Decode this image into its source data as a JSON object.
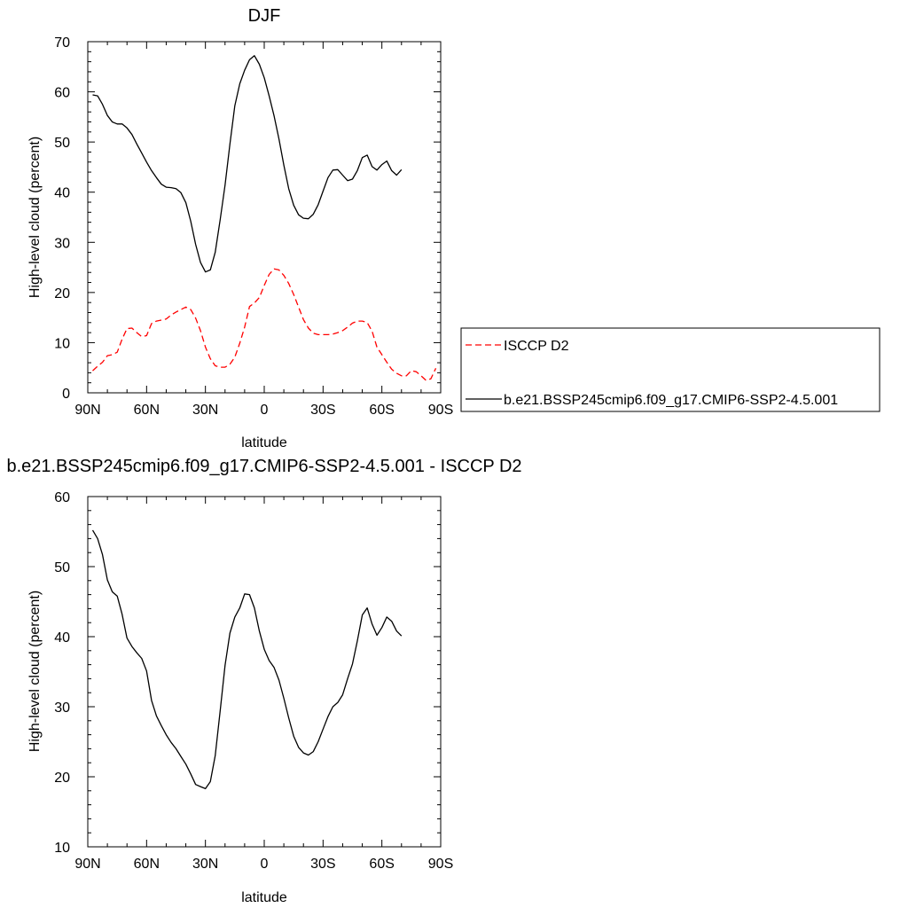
{
  "chart_data": [
    {
      "type": "line",
      "title": "DJF",
      "xlabel": "latitude",
      "ylabel": "High-level cloud (percent)",
      "xlim": [
        90,
        -90
      ],
      "ylim": [
        0,
        70
      ],
      "xticks": [
        90,
        60,
        30,
        0,
        -30,
        -60,
        -90
      ],
      "xtick_labels": [
        "90N",
        "60N",
        "30N",
        "0",
        "30S",
        "60S",
        "90S"
      ],
      "yticks": [
        0,
        10,
        20,
        30,
        40,
        50,
        60,
        70
      ],
      "ytick_labels": [
        "0",
        "10",
        "20",
        "30",
        "40",
        "50",
        "60",
        "70"
      ],
      "legend": "outside-right",
      "series": [
        {
          "name": "ISCCP D2",
          "color": "#ff0000",
          "dash": "dashed",
          "points": [
            [
              87.5,
              4.4
            ],
            [
              85,
              5.3
            ],
            [
              82.5,
              6.1
            ],
            [
              80,
              7.4
            ],
            [
              77.5,
              7.6
            ],
            [
              75,
              8.1
            ],
            [
              72.5,
              10.7
            ],
            [
              70,
              12.8
            ],
            [
              67.5,
              12.9
            ],
            [
              65,
              12.0
            ],
            [
              62.5,
              11.2
            ],
            [
              60,
              11.4
            ],
            [
              57.5,
              13.8
            ],
            [
              55,
              14.3
            ],
            [
              52.5,
              14.5
            ],
            [
              50,
              14.7
            ],
            [
              47.5,
              15.5
            ],
            [
              45,
              16.1
            ],
            [
              42.5,
              16.6
            ],
            [
              40,
              17.1
            ],
            [
              37.5,
              16.6
            ],
            [
              35,
              14.9
            ],
            [
              32.5,
              12.4
            ],
            [
              30,
              9.1
            ],
            [
              27.5,
              6.8
            ],
            [
              25,
              5.4
            ],
            [
              22.5,
              5.1
            ],
            [
              20,
              5.1
            ],
            [
              17.5,
              5.7
            ],
            [
              15,
              7.1
            ],
            [
              12.5,
              9.9
            ],
            [
              10,
              13.1
            ],
            [
              7.5,
              17.2
            ],
            [
              5,
              17.9
            ],
            [
              2.5,
              19.0
            ],
            [
              0,
              21.4
            ],
            [
              -2.5,
              23.6
            ],
            [
              -5,
              24.7
            ],
            [
              -7.5,
              24.5
            ],
            [
              -10,
              23.4
            ],
            [
              -12.5,
              21.8
            ],
            [
              -15,
              19.6
            ],
            [
              -17.5,
              17.1
            ],
            [
              -20,
              14.6
            ],
            [
              -22.5,
              12.9
            ],
            [
              -25,
              11.9
            ],
            [
              -27.5,
              11.6
            ],
            [
              -30,
              11.6
            ],
            [
              -32.5,
              11.6
            ],
            [
              -35,
              11.7
            ],
            [
              -37.5,
              12.0
            ],
            [
              -40,
              12.4
            ],
            [
              -42.5,
              13.1
            ],
            [
              -45,
              13.9
            ],
            [
              -47.5,
              14.3
            ],
            [
              -50,
              14.3
            ],
            [
              -52.5,
              14.0
            ],
            [
              -55,
              12.3
            ],
            [
              -57.5,
              9.1
            ],
            [
              -60,
              7.6
            ],
            [
              -62.5,
              6.1
            ],
            [
              -65,
              4.7
            ],
            [
              -67.5,
              3.9
            ],
            [
              -70,
              3.4
            ],
            [
              -72.5,
              3.4
            ],
            [
              -75,
              4.4
            ],
            [
              -77.5,
              4.2
            ],
            [
              -80,
              3.4
            ],
            [
              -82.5,
              2.5
            ],
            [
              -85,
              2.8
            ],
            [
              -87.5,
              4.9
            ]
          ]
        },
        {
          "name": "b.e21.BSSP245cmip6.f09_g17.CMIP6-SSP2-4.5.001",
          "color": "#000000",
          "dash": "solid",
          "points": [
            [
              87.5,
              59.4
            ],
            [
              85,
              59.2
            ],
            [
              82.5,
              57.5
            ],
            [
              80,
              55.3
            ],
            [
              77.5,
              54.0
            ],
            [
              75,
              53.6
            ],
            [
              72.5,
              53.6
            ],
            [
              70,
              52.8
            ],
            [
              67.5,
              51.5
            ],
            [
              65,
              49.6
            ],
            [
              62.5,
              47.8
            ],
            [
              60,
              46.0
            ],
            [
              57.5,
              44.3
            ],
            [
              55,
              42.9
            ],
            [
              52.5,
              41.6
            ],
            [
              50,
              41.0
            ],
            [
              47.5,
              40.9
            ],
            [
              45,
              40.7
            ],
            [
              42.5,
              39.9
            ],
            [
              40,
              37.9
            ],
            [
              37.5,
              34.2
            ],
            [
              35,
              29.6
            ],
            [
              32.5,
              26.0
            ],
            [
              30,
              24.1
            ],
            [
              27.5,
              24.5
            ],
            [
              25,
              28.0
            ],
            [
              22.5,
              34.5
            ],
            [
              20,
              41.4
            ],
            [
              17.5,
              49.6
            ],
            [
              15,
              57.2
            ],
            [
              12.5,
              61.6
            ],
            [
              10,
              64.3
            ],
            [
              7.5,
              66.4
            ],
            [
              5,
              67.2
            ],
            [
              2.5,
              65.5
            ],
            [
              0,
              62.8
            ],
            [
              -2.5,
              59.2
            ],
            [
              -5,
              55.2
            ],
            [
              -7.5,
              50.6
            ],
            [
              -10,
              45.4
            ],
            [
              -12.5,
              40.7
            ],
            [
              -15,
              37.4
            ],
            [
              -17.5,
              35.5
            ],
            [
              -20,
              34.8
            ],
            [
              -22.5,
              34.7
            ],
            [
              -25,
              35.6
            ],
            [
              -27.5,
              37.5
            ],
            [
              -30,
              40.2
            ],
            [
              -32.5,
              42.9
            ],
            [
              -35,
              44.4
            ],
            [
              -37.5,
              44.5
            ],
            [
              -40,
              43.4
            ],
            [
              -42.5,
              42.3
            ],
            [
              -45,
              42.6
            ],
            [
              -47.5,
              44.3
            ],
            [
              -50,
              46.9
            ],
            [
              -52.5,
              47.4
            ],
            [
              -55,
              45.1
            ],
            [
              -57.5,
              44.4
            ],
            [
              -60,
              45.5
            ],
            [
              -62.5,
              46.2
            ],
            [
              -65,
              44.3
            ],
            [
              -67.5,
              43.4
            ],
            [
              -70,
              44.5
            ]
          ]
        }
      ]
    },
    {
      "type": "line",
      "title": "b.e21.BSSP245cmip6.f09_g17.CMIP6-SSP2-4.5.001 - ISCCP D2",
      "xlabel": "latitude",
      "ylabel": "High-level cloud (percent)",
      "xlim": [
        90,
        -90
      ],
      "ylim": [
        10,
        60
      ],
      "xticks": [
        90,
        60,
        30,
        0,
        -30,
        -60,
        -90
      ],
      "xtick_labels": [
        "90N",
        "60N",
        "30N",
        "0",
        "30S",
        "60S",
        "90S"
      ],
      "yticks": [
        10,
        20,
        30,
        40,
        50,
        60
      ],
      "ytick_labels": [
        "10",
        "20",
        "30",
        "40",
        "50",
        "60"
      ],
      "series": [
        {
          "color": "#000000",
          "dash": "solid",
          "points": [
            [
              87.5,
              55.2
            ],
            [
              85,
              54.0
            ],
            [
              82.5,
              51.7
            ],
            [
              80,
              48.1
            ],
            [
              77.5,
              46.4
            ],
            [
              75,
              45.8
            ],
            [
              72.5,
              43.2
            ],
            [
              70,
              39.8
            ],
            [
              67.5,
              38.6
            ],
            [
              65,
              37.7
            ],
            [
              62.5,
              36.9
            ],
            [
              60,
              35.1
            ],
            [
              57.5,
              30.9
            ],
            [
              55,
              28.7
            ],
            [
              52.5,
              27.3
            ],
            [
              50,
              26.0
            ],
            [
              47.5,
              24.9
            ],
            [
              45,
              24.0
            ],
            [
              42.5,
              22.9
            ],
            [
              40,
              21.8
            ],
            [
              37.5,
              20.4
            ],
            [
              35,
              18.9
            ],
            [
              32.5,
              18.6
            ],
            [
              30,
              18.3
            ],
            [
              27.5,
              19.3
            ],
            [
              25,
              23.0
            ],
            [
              22.5,
              29.4
            ],
            [
              20,
              35.9
            ],
            [
              17.5,
              40.5
            ],
            [
              15,
              42.8
            ],
            [
              12.5,
              44.1
            ],
            [
              10,
              46.1
            ],
            [
              7.5,
              46.0
            ],
            [
              5,
              44.1
            ],
            [
              2.5,
              40.8
            ],
            [
              0,
              38.2
            ],
            [
              -2.5,
              36.6
            ],
            [
              -5,
              35.6
            ],
            [
              -7.5,
              33.8
            ],
            [
              -10,
              31.2
            ],
            [
              -12.5,
              28.4
            ],
            [
              -15,
              25.8
            ],
            [
              -17.5,
              24.2
            ],
            [
              -20,
              23.4
            ],
            [
              -22.5,
              23.1
            ],
            [
              -25,
              23.6
            ],
            [
              -27.5,
              25.0
            ],
            [
              -30,
              26.8
            ],
            [
              -32.5,
              28.6
            ],
            [
              -35,
              30.0
            ],
            [
              -37.5,
              30.6
            ],
            [
              -40,
              31.7
            ],
            [
              -42.5,
              34.0
            ],
            [
              -45,
              36.1
            ],
            [
              -47.5,
              39.4
            ],
            [
              -50,
              43.1
            ],
            [
              -52.5,
              44.1
            ],
            [
              -55,
              41.8
            ],
            [
              -57.5,
              40.2
            ],
            [
              -60,
              41.3
            ],
            [
              -62.5,
              42.8
            ],
            [
              -65,
              42.2
            ],
            [
              -67.5,
              40.8
            ],
            [
              -70,
              40.1
            ]
          ]
        }
      ]
    }
  ]
}
